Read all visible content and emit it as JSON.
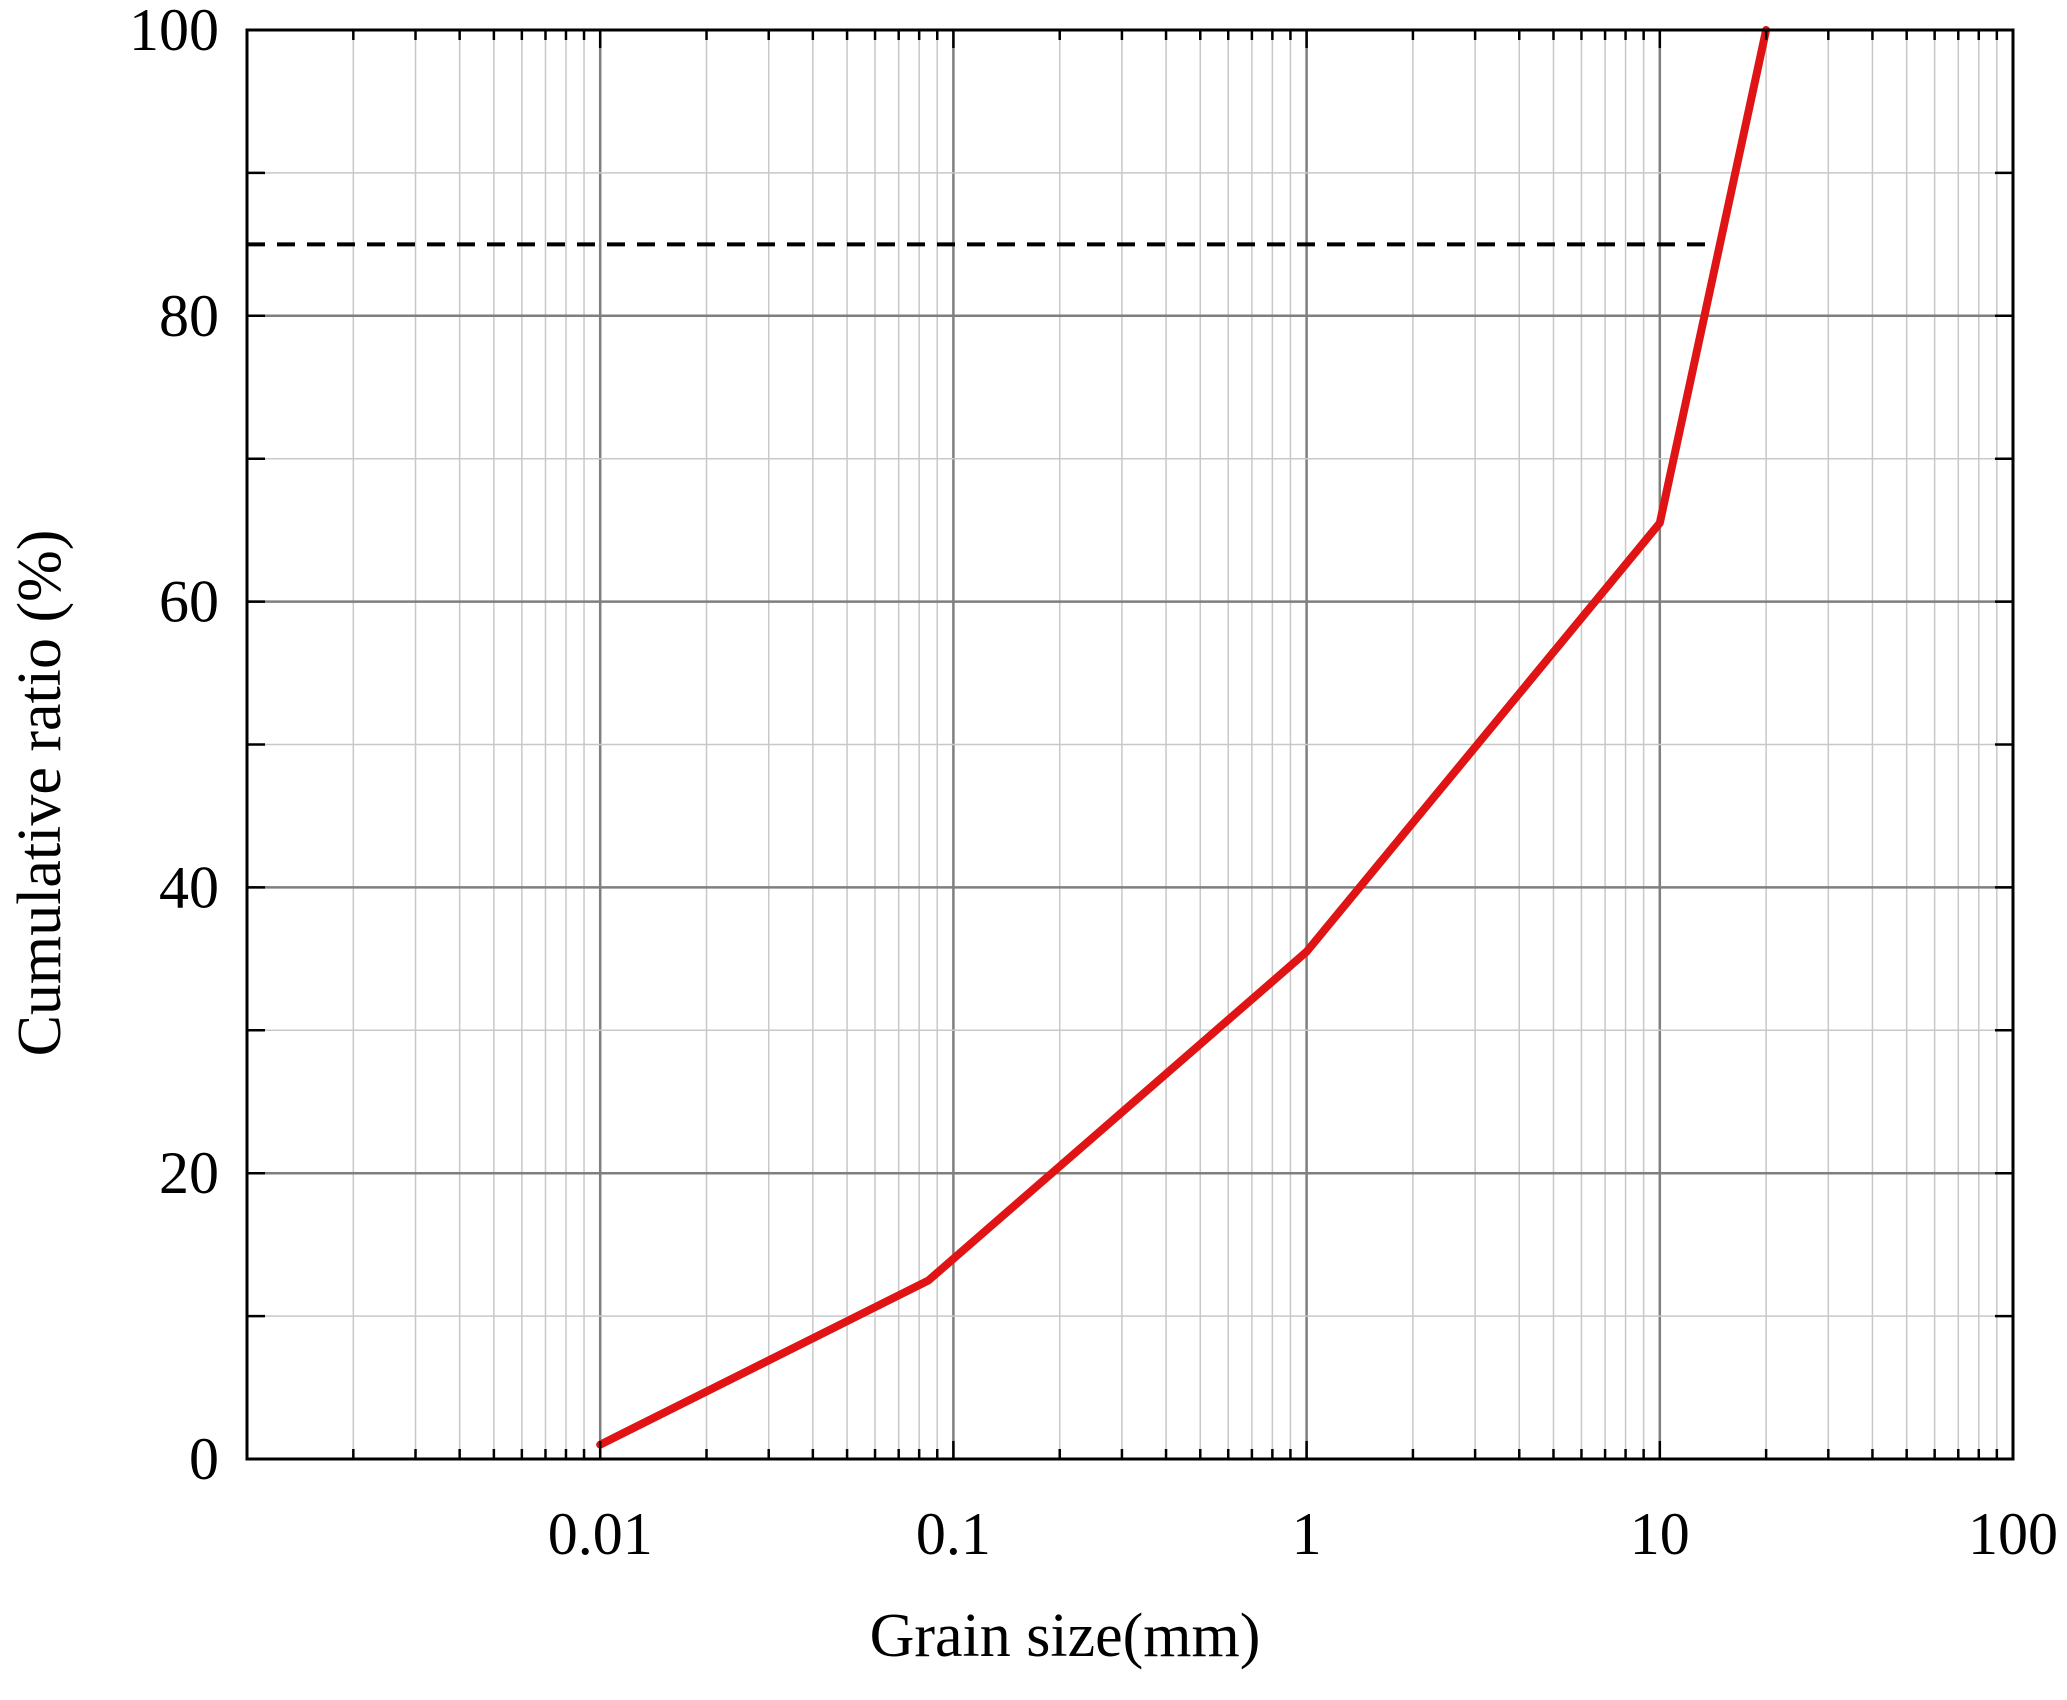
{
  "chart_data": {
    "type": "line",
    "title": "",
    "xlabel": "Grain size(mm)",
    "ylabel": "Cumulative ratio (%)",
    "x_scale": "log",
    "xlim": [
      0.001,
      100
    ],
    "ylim": [
      0,
      100
    ],
    "x_ticks": [
      0.01,
      0.1,
      1,
      10,
      100
    ],
    "x_tick_labels": [
      "0.01",
      "0.1",
      "1",
      "10",
      "100"
    ],
    "y_ticks": [
      0,
      20,
      40,
      60,
      80,
      100
    ],
    "y_tick_labels": [
      "0",
      "20",
      "40",
      "60",
      "80",
      "100"
    ],
    "grid": true,
    "series": [
      {
        "color": "#e01414",
        "x": [
          0.01,
          0.085,
          1,
          10,
          20
        ],
        "y": [
          1,
          12.5,
          35.5,
          65.5,
          100
        ]
      }
    ],
    "reference_lines": [
      {
        "style": "dashed",
        "color": "#000000",
        "y": 85,
        "x_from": 0.001,
        "x_to": 15
      }
    ],
    "colors": {
      "line": "#e01414",
      "major_grid": "#7f7f7f",
      "minor_grid": "#c8c8c8",
      "axis": "#000000"
    }
  }
}
